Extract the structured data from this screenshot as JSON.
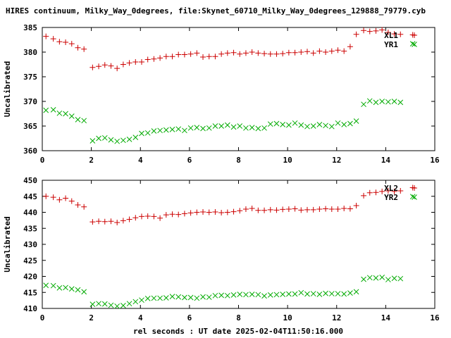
{
  "title": "HIRES continuum, Milky_Way_0degrees, file:Skynet_60710_Milky_Way_0degrees_129888_79779.cyb",
  "xlabel": "rel seconds : UT date 2025-02-04T11:50:16.000",
  "colors": {
    "series1": "#cc0000",
    "series2": "#00aa00",
    "axis": "#000000"
  },
  "chart_data": [
    {
      "type": "scatter",
      "ylabel": "Uncalibrated",
      "xlim": [
        0,
        16
      ],
      "ylim": [
        360,
        385
      ],
      "xticks": [
        0,
        2,
        4,
        6,
        8,
        10,
        12,
        14,
        16
      ],
      "yticks": [
        360,
        365,
        370,
        375,
        380,
        385
      ],
      "legend_position": "top-right",
      "series": [
        {
          "name": "XL1",
          "marker": "plus",
          "x": [
            0.15,
            0.45,
            0.7,
            0.95,
            1.2,
            1.45,
            1.7,
            2.05,
            2.3,
            2.55,
            2.8,
            3.05,
            3.3,
            3.55,
            3.8,
            4.05,
            4.3,
            4.55,
            4.8,
            5.05,
            5.3,
            5.55,
            5.8,
            6.05,
            6.3,
            6.55,
            6.8,
            7.05,
            7.3,
            7.55,
            7.8,
            8.05,
            8.3,
            8.55,
            8.8,
            9.05,
            9.3,
            9.55,
            9.8,
            10.05,
            10.3,
            10.55,
            10.8,
            11.05,
            11.3,
            11.55,
            11.8,
            12.05,
            12.3,
            12.55,
            12.8,
            13.1,
            13.35,
            13.6,
            13.85,
            14.1,
            14.35,
            14.6,
            15.1
          ],
          "y": [
            383.2,
            382.7,
            382.1,
            382.0,
            381.7,
            380.9,
            380.6,
            376.9,
            377.1,
            377.4,
            377.2,
            376.7,
            377.5,
            377.8,
            378.0,
            378.0,
            378.5,
            378.6,
            378.8,
            379.1,
            379.1,
            379.5,
            379.5,
            379.6,
            379.8,
            379.0,
            379.1,
            379.1,
            379.6,
            379.8,
            379.9,
            379.6,
            379.8,
            380.0,
            379.8,
            379.7,
            379.6,
            379.6,
            379.7,
            379.9,
            379.9,
            380.0,
            380.1,
            379.8,
            380.2,
            380.0,
            380.2,
            380.4,
            380.2,
            381.1,
            383.6,
            384.4,
            384.2,
            384.3,
            384.5,
            384.0,
            383.7,
            383.6,
            383.5
          ]
        },
        {
          "name": "YR1",
          "marker": "cross",
          "x": [
            0.15,
            0.45,
            0.7,
            0.95,
            1.2,
            1.45,
            1.7,
            2.05,
            2.3,
            2.55,
            2.8,
            3.05,
            3.3,
            3.55,
            3.8,
            4.05,
            4.3,
            4.55,
            4.8,
            5.05,
            5.3,
            5.55,
            5.8,
            6.05,
            6.3,
            6.55,
            6.8,
            7.05,
            7.3,
            7.55,
            7.8,
            8.05,
            8.3,
            8.55,
            8.8,
            9.05,
            9.3,
            9.55,
            9.8,
            10.05,
            10.3,
            10.55,
            10.8,
            11.05,
            11.3,
            11.55,
            11.8,
            12.05,
            12.3,
            12.55,
            12.8,
            13.1,
            13.35,
            13.6,
            13.85,
            14.1,
            14.35,
            14.6,
            15.1
          ],
          "y": [
            368.2,
            368.3,
            367.6,
            367.5,
            367.0,
            366.3,
            366.1,
            362.0,
            362.5,
            362.6,
            362.2,
            361.9,
            362.1,
            362.3,
            362.7,
            363.5,
            363.6,
            364.0,
            364.1,
            364.2,
            364.3,
            364.4,
            364.1,
            364.6,
            364.7,
            364.5,
            364.6,
            365.0,
            365.0,
            365.2,
            364.8,
            365.0,
            364.6,
            364.7,
            364.5,
            364.6,
            365.4,
            365.5,
            365.3,
            365.2,
            365.6,
            365.2,
            364.9,
            365.0,
            365.3,
            365.1,
            364.9,
            365.6,
            365.3,
            365.5,
            366.0,
            369.4,
            370.1,
            369.8,
            370.0,
            369.9,
            370.0,
            369.8,
            381.7
          ]
        }
      ]
    },
    {
      "type": "scatter",
      "ylabel": "Uncalibrated",
      "xlim": [
        0,
        16
      ],
      "ylim": [
        410,
        450
      ],
      "xticks": [
        0,
        2,
        4,
        6,
        8,
        10,
        12,
        14,
        16
      ],
      "yticks": [
        410,
        415,
        420,
        425,
        430,
        435,
        440,
        445,
        450
      ],
      "legend_position": "top-right",
      "series": [
        {
          "name": "XL2",
          "marker": "plus",
          "x": [
            0.15,
            0.45,
            0.7,
            0.95,
            1.2,
            1.45,
            1.7,
            2.05,
            2.3,
            2.55,
            2.8,
            3.05,
            3.3,
            3.55,
            3.8,
            4.05,
            4.3,
            4.55,
            4.8,
            5.05,
            5.3,
            5.55,
            5.8,
            6.05,
            6.3,
            6.55,
            6.8,
            7.05,
            7.3,
            7.55,
            7.8,
            8.05,
            8.3,
            8.55,
            8.8,
            9.05,
            9.3,
            9.55,
            9.8,
            10.05,
            10.3,
            10.55,
            10.8,
            11.05,
            11.3,
            11.55,
            11.8,
            12.05,
            12.3,
            12.55,
            12.8,
            13.1,
            13.35,
            13.6,
            13.85,
            14.1,
            14.35,
            14.6,
            15.1
          ],
          "y": [
            445.0,
            444.7,
            443.9,
            444.4,
            443.5,
            442.3,
            441.7,
            437.0,
            437.2,
            437.1,
            437.2,
            436.8,
            437.4,
            437.8,
            438.3,
            438.7,
            438.8,
            438.7,
            438.2,
            439.2,
            439.4,
            439.3,
            439.6,
            439.8,
            440.0,
            440.1,
            440.0,
            440.1,
            439.9,
            440.0,
            440.2,
            440.5,
            441.0,
            441.2,
            440.6,
            440.6,
            440.8,
            440.7,
            440.9,
            441.0,
            441.1,
            440.7,
            440.8,
            440.8,
            441.0,
            441.1,
            441.0,
            441.0,
            441.2,
            441.1,
            442.1,
            445.2,
            446.1,
            446.2,
            446.5,
            446.7,
            446.5,
            446.7,
            447.7
          ]
        },
        {
          "name": "YR2",
          "marker": "cross",
          "x": [
            0.15,
            0.45,
            0.7,
            0.95,
            1.2,
            1.45,
            1.7,
            2.05,
            2.3,
            2.55,
            2.8,
            3.05,
            3.3,
            3.55,
            3.8,
            4.05,
            4.3,
            4.55,
            4.8,
            5.05,
            5.3,
            5.55,
            5.8,
            6.05,
            6.3,
            6.55,
            6.8,
            7.05,
            7.3,
            7.55,
            7.8,
            8.05,
            8.3,
            8.55,
            8.8,
            9.05,
            9.3,
            9.55,
            9.8,
            10.05,
            10.3,
            10.55,
            10.8,
            11.05,
            11.3,
            11.55,
            11.8,
            12.05,
            12.3,
            12.55,
            12.8,
            13.1,
            13.35,
            13.6,
            13.85,
            14.1,
            14.35,
            14.6,
            15.1
          ],
          "y": [
            417.2,
            417.1,
            416.4,
            416.5,
            416.1,
            415.8,
            415.2,
            411.3,
            411.5,
            411.4,
            411.0,
            410.7,
            410.9,
            411.5,
            412.1,
            412.6,
            413.1,
            413.2,
            413.2,
            413.3,
            413.7,
            413.6,
            413.4,
            413.4,
            413.2,
            413.6,
            413.5,
            414.0,
            414.1,
            414.0,
            414.2,
            414.4,
            414.3,
            414.4,
            414.3,
            413.9,
            414.2,
            414.3,
            414.4,
            414.5,
            414.5,
            414.9,
            414.5,
            414.6,
            414.4,
            414.7,
            414.6,
            414.6,
            414.5,
            414.8,
            415.2,
            419.1,
            419.6,
            419.5,
            419.7,
            419.0,
            419.4,
            419.3,
            444.9
          ]
        }
      ]
    }
  ]
}
